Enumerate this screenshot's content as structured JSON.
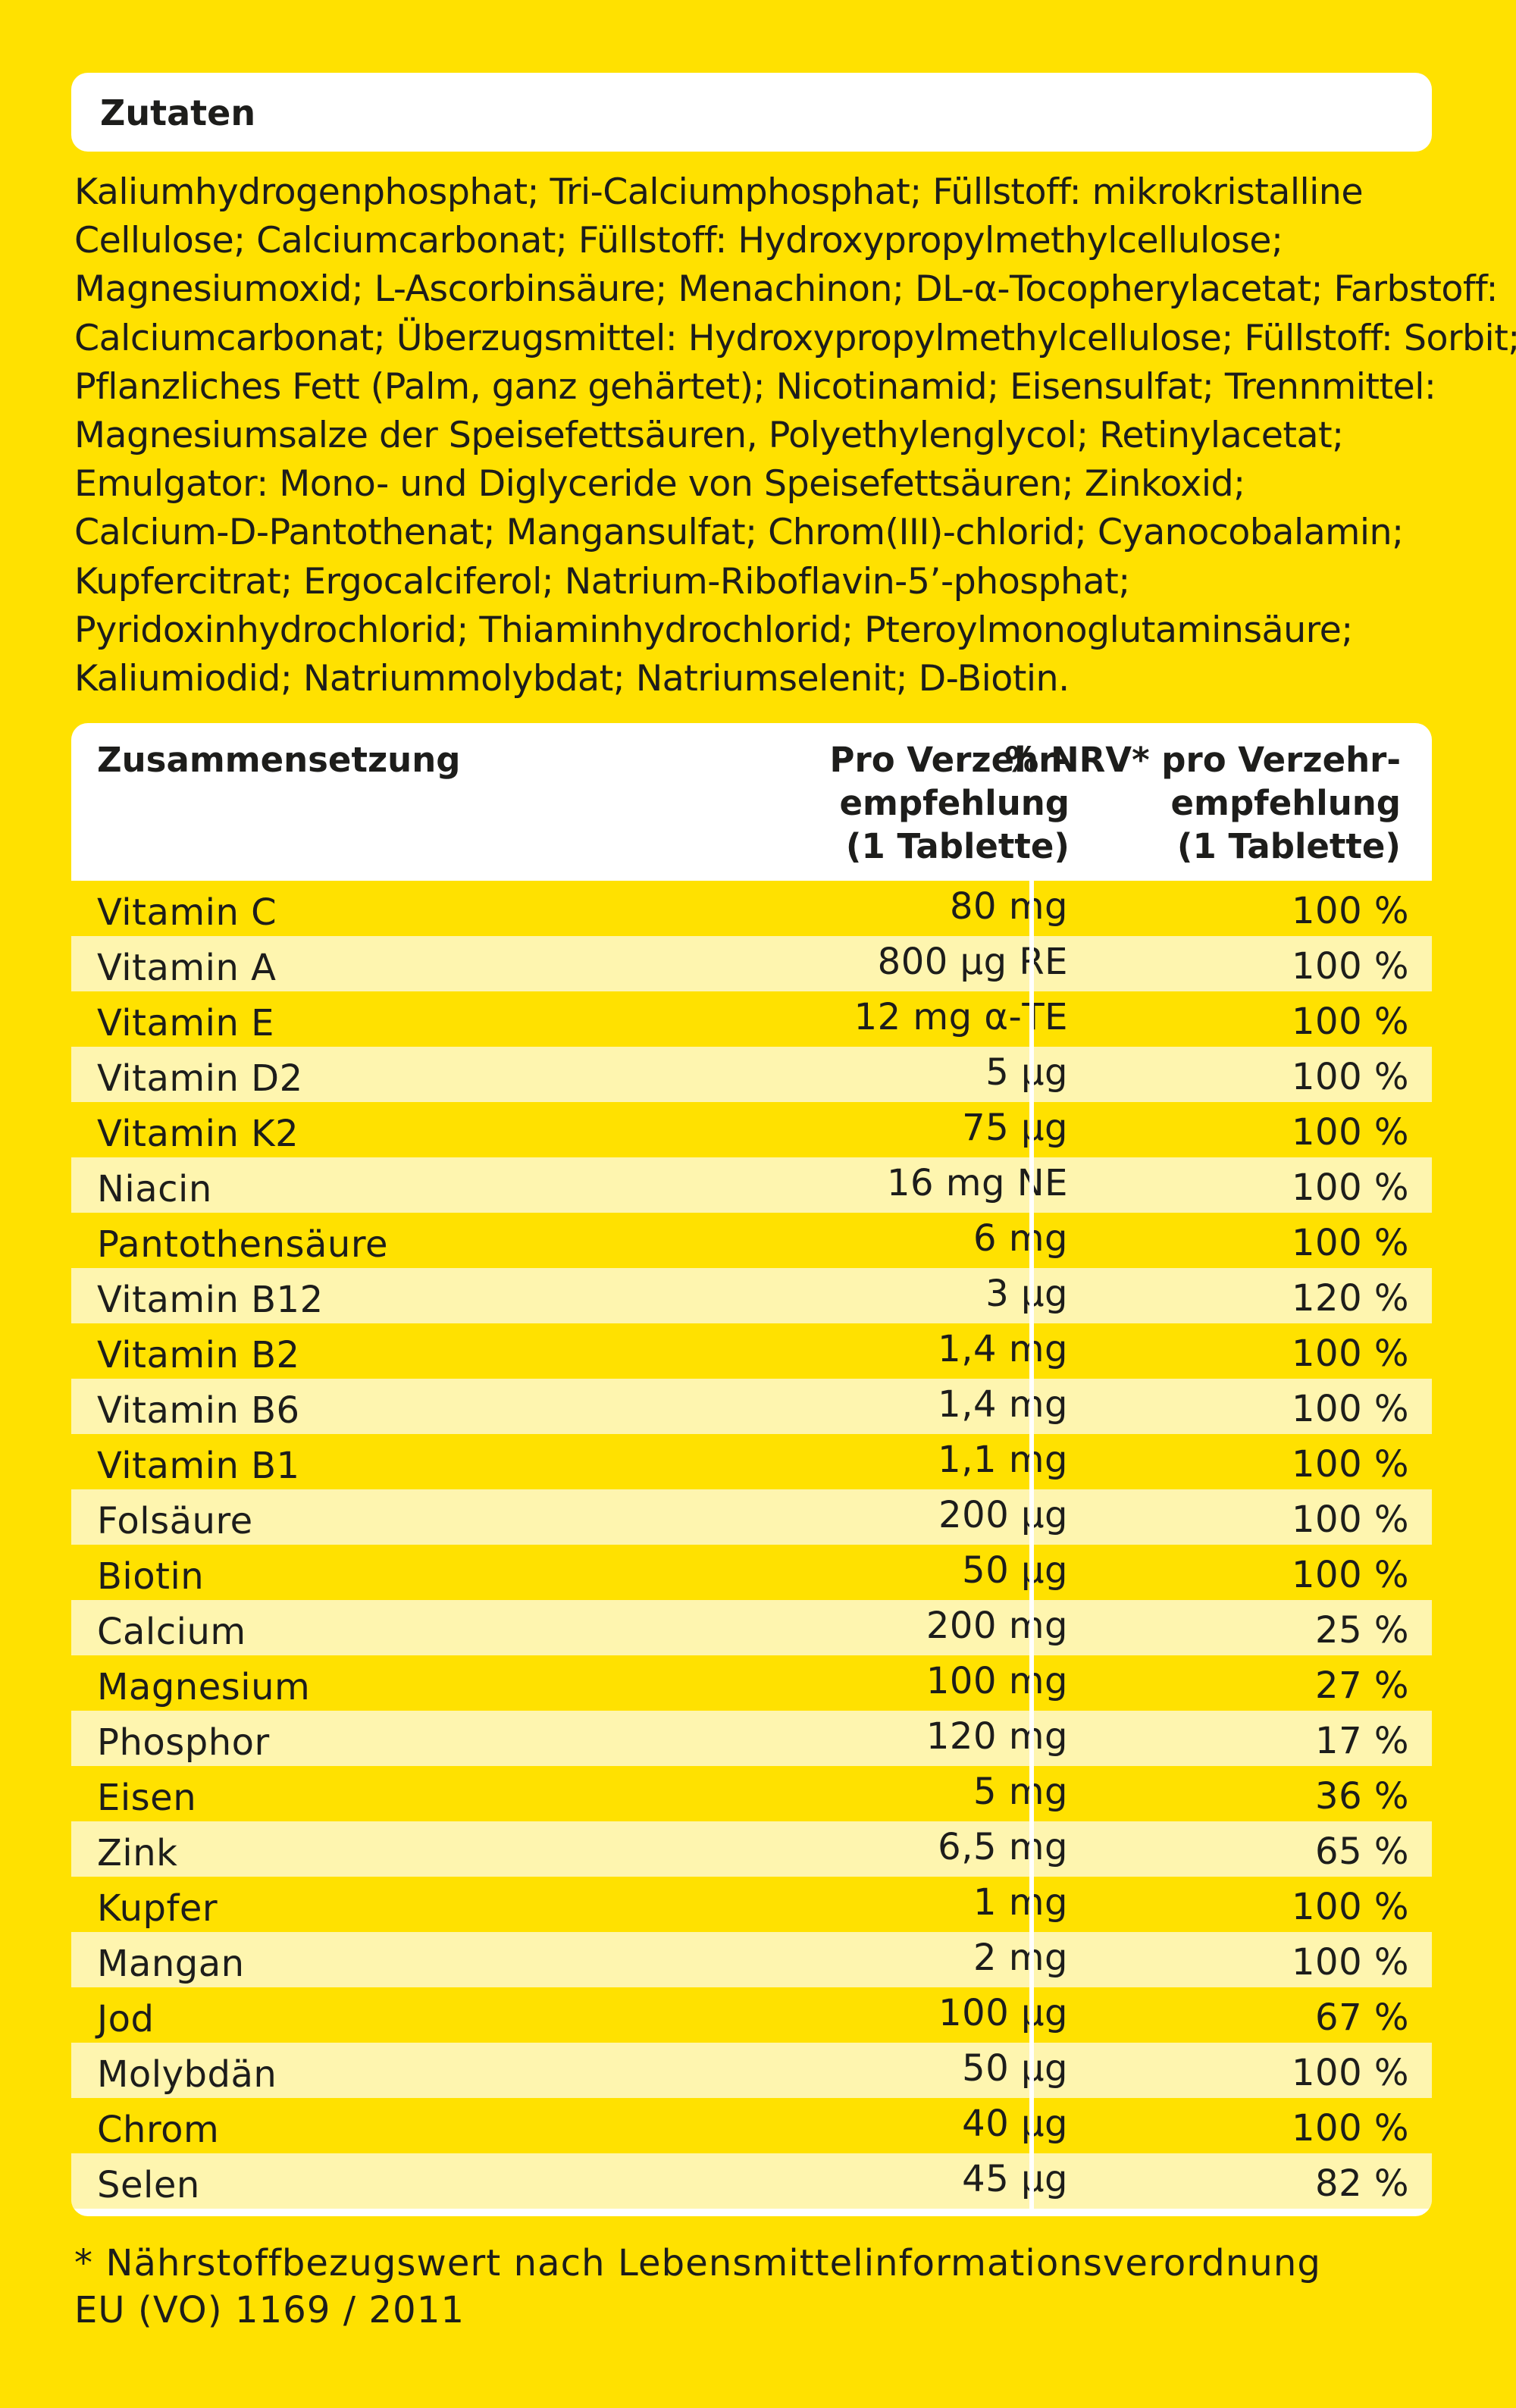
{
  "ingredients": {
    "title": "Zutaten",
    "lines": [
      "Kaliumhydrogenphosphat; Tri-Calciumphosphat; Füllstoff: mikrokristalline",
      "Cellulose; Calciumcarbonat; Füllstoff: Hydroxypropylmethylcellulose;",
      "Magnesiumoxid; L-Ascorbinsäure; Menachinon; DL-α-Tocopherylacetat; Farbstoff:",
      "Calciumcarbonat; Überzugsmittel: Hydroxypropylmethylcellulose; Füllstoff: Sorbit;",
      "Pflanzliches Fett (Palm, ganz gehärtet); Nicotinamid; Eisensulfat; Trennmittel:",
      "Magnesiumsalze der Speisefettsäuren, Polyethylenglycol; Retinylacetat;",
      "Emulgator: Mono- und Diglyceride von Speisefettsäuren; Zinkoxid;",
      "Calcium-D-Pantothenat; Mangansulfat; Chrom(III)-chlorid; Cyanocobalamin;",
      "Kupfercitrat; Ergocalciferol; Natrium-Riboflavin-5’-phosphat;",
      "Pyridoxinhydrochlorid; Thiaminhydrochlorid; Pteroylmonoglutaminsäure;",
      "Kaliumiodid; Natriummolybdat; Natriumselenit; D-Biotin."
    ]
  },
  "table": {
    "header": {
      "name": "Zusammensetzung",
      "amount_lines": [
        "Pro Verzehr-",
        "empfehlung",
        "(1 Tablette)"
      ],
      "nrv_lines": [
        "% NRV* pro Verzehr-",
        "empfehlung",
        "(1 Tablette)"
      ]
    },
    "rows": [
      {
        "name": "Vitamin C",
        "amount": "80 mg",
        "nrv": "100 %"
      },
      {
        "name": "Vitamin A",
        "amount": "800 µg RE",
        "nrv": "100 %"
      },
      {
        "name": "Vitamin E",
        "amount": "12 mg α-TE",
        "nrv": "100 %"
      },
      {
        "name": "Vitamin D2",
        "amount": "5 µg",
        "nrv": "100 %"
      },
      {
        "name": "Vitamin K2",
        "amount": "75 µg",
        "nrv": "100 %"
      },
      {
        "name": "Niacin",
        "amount": "16 mg NE",
        "nrv": "100 %"
      },
      {
        "name": "Pantothensäure",
        "amount": "6 mg",
        "nrv": "100 %"
      },
      {
        "name": "Vitamin B12",
        "amount": "3 µg",
        "nrv": "120 %"
      },
      {
        "name": "Vitamin B2",
        "amount": "1,4 mg",
        "nrv": "100 %"
      },
      {
        "name": "Vitamin B6",
        "amount": "1,4 mg",
        "nrv": "100 %"
      },
      {
        "name": "Vitamin B1",
        "amount": "1,1 mg",
        "nrv": "100 %"
      },
      {
        "name": "Folsäure",
        "amount": "200 µg",
        "nrv": "100 %"
      },
      {
        "name": "Biotin",
        "amount": "50 µg",
        "nrv": "100 %"
      },
      {
        "name": "Calcium",
        "amount": "200 mg",
        "nrv": "25 %"
      },
      {
        "name": "Magnesium",
        "amount": "100 mg",
        "nrv": "27 %"
      },
      {
        "name": "Phosphor",
        "amount": "120 mg",
        "nrv": "17 %"
      },
      {
        "name": "Eisen",
        "amount": "5 mg",
        "nrv": "36 %"
      },
      {
        "name": "Zink",
        "amount": "6,5 mg",
        "nrv": "65 %"
      },
      {
        "name": "Kupfer",
        "amount": "1 mg",
        "nrv": "100 %"
      },
      {
        "name": "Mangan",
        "amount": "2 mg",
        "nrv": "100 %"
      },
      {
        "name": "Jod",
        "amount": "100 µg",
        "nrv": "67 %"
      },
      {
        "name": "Molybdän",
        "amount": "50 µg",
        "nrv": "100 %"
      },
      {
        "name": "Chrom",
        "amount": "40 µg",
        "nrv": "100 %"
      },
      {
        "name": "Selen",
        "amount": "45 µg",
        "nrv": "82 %"
      }
    ]
  },
  "footnote": {
    "lines": [
      "* Nährstoffbezugswert nach Lebensmittelinformationsverordnung",
      "EU (VO) 1169 / 2011"
    ]
  },
  "colors": {
    "background": "#FFE100",
    "row_light": "#FEF5AF",
    "panel": "#FFFFFF",
    "text": "#1D1D1B"
  }
}
